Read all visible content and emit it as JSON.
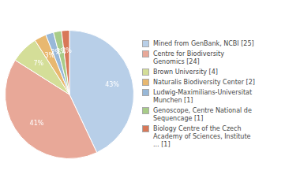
{
  "chart_data": {
    "type": "pie",
    "categories": [
      "Mined from GenBank, NCBI [25]",
      "Centre for Biodiversity\nGenomics [24]",
      "Brown University [4]",
      "Naturalis Biodiversity Center [2]",
      "Ludwig-Maximilians-Universitat\nMunchen [1]",
      "Genoscope, Centre National de\nSequencage [1]",
      "Biology Centre of the Czech\nAcademy of Sciences, Institute\n... [1]"
    ],
    "values": [
      43,
      41,
      7,
      3,
      2,
      2,
      2
    ],
    "value_labels": [
      "43%",
      "41%",
      "7%",
      "3%",
      "2%",
      "2%",
      "2%"
    ],
    "colors": [
      "#b8cfe8",
      "#e8a898",
      "#d4de98",
      "#e8b870",
      "#98b8d8",
      "#a8cc88",
      "#d87858"
    ],
    "data_labels": true,
    "legend": "right"
  }
}
